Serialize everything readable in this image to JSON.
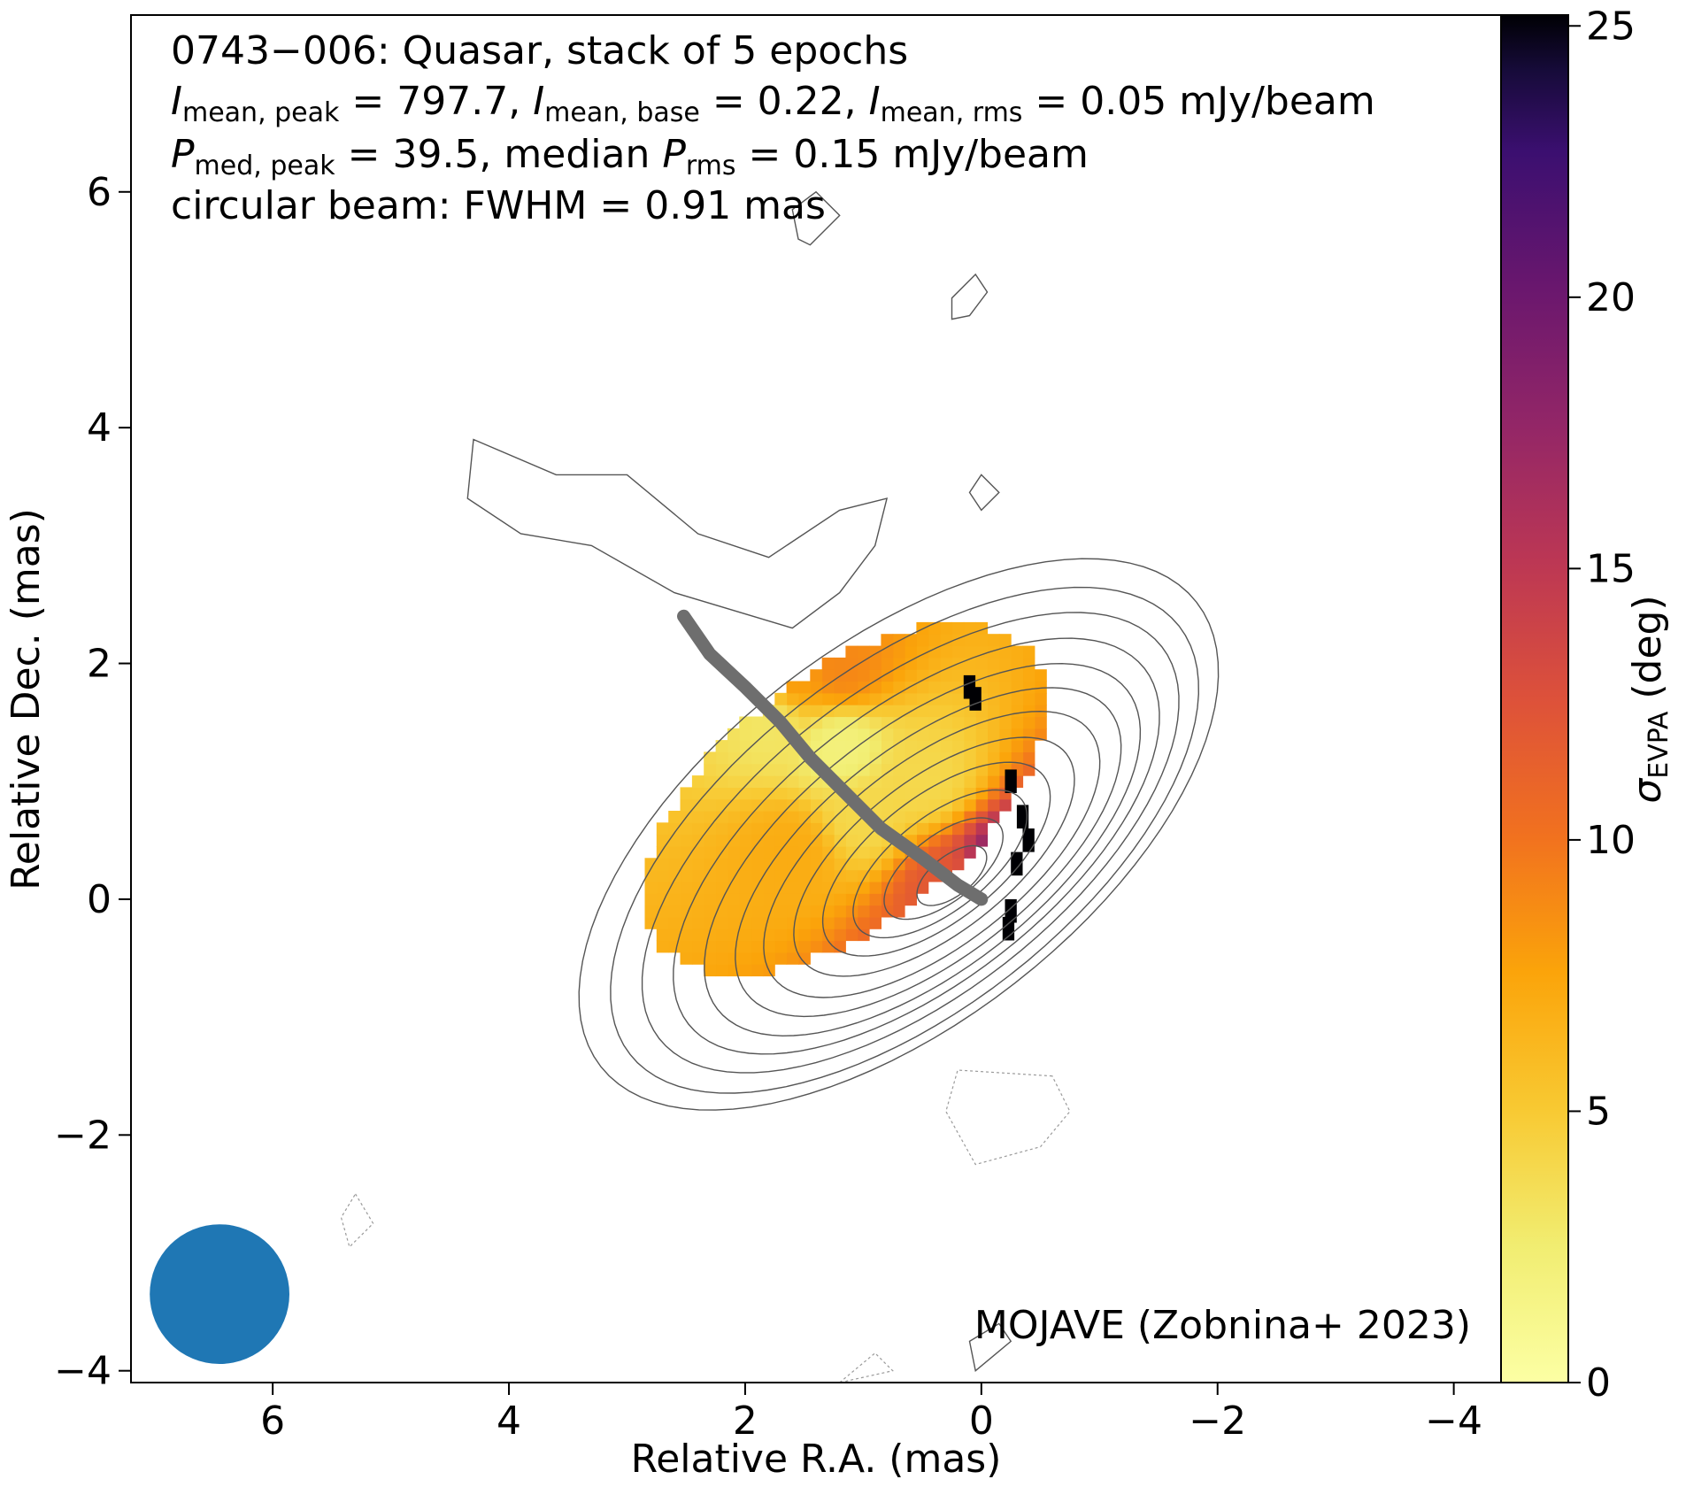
{
  "chart_data": {
    "type": "heatmap",
    "title_lines": [
      "0743−006: Quasar, stack of 5 epochs",
      "I_mean,peak = 797.7, I_mean,base = 0.22, I_mean,rms = 0.05 mJy/beam",
      "P_med,peak = 39.5, median P_rms = 0.15 mJy/beam",
      "circular beam: FWHM = 0.91 mas"
    ],
    "title": {
      "line1": "0743−006: Quasar, stack of 5 epochs",
      "line2": {
        "I": "I",
        "sub_peak": "mean, peak",
        "peak_val": " = 797.7, ",
        "sub_base": "mean, base",
        "base_val": " = 0.22, ",
        "sub_rms": "mean, rms",
        "rms_val": " = 0.05 mJy/beam"
      },
      "line3": {
        "P": "P",
        "sub_peak": "med, peak",
        "peak_val": " = 39.5, median ",
        "sub_rms": "rms",
        "rms_val": " = 0.15 mJy/beam"
      },
      "line4": "circular beam: FWHM = 0.91 mas"
    },
    "credit": "MOJAVE (Zobnina+ 2023)",
    "xlabel": "Relative R.A. (mas)",
    "ylabel": "Relative Dec. (mas)",
    "xlim": [
      7.2,
      -4.4
    ],
    "ylim": [
      -4.1,
      7.5
    ],
    "x_ticks": [
      6,
      4,
      2,
      0,
      -2,
      -4
    ],
    "x_tick_labels": [
      "6",
      "4",
      "2",
      "0",
      "−2",
      "−4"
    ],
    "y_ticks": [
      6,
      4,
      2,
      0,
      -2,
      -4
    ],
    "y_tick_labels": [
      "6",
      "4",
      "2",
      "0",
      "−2",
      "−4"
    ],
    "colorbar": {
      "label_symbol": "σ",
      "label_sub": "EVPA",
      "label_unit": " (deg)",
      "range": [
        0,
        25.2
      ],
      "ticks": [
        0,
        5,
        10,
        15,
        20,
        25
      ],
      "tick_labels": [
        "0",
        "5",
        "10",
        "15",
        "20",
        "25"
      ],
      "colormap": "inferno_r"
    },
    "beam": {
      "center": [
        6.45,
        -3.35
      ],
      "fwhm_mas": 0.91,
      "color": "#1f77b4"
    },
    "ridge_line": {
      "color": "#6e6e6e",
      "points": [
        [
          2.52,
          2.4
        ],
        [
          2.3,
          2.08
        ],
        [
          2.0,
          1.8
        ],
        [
          1.7,
          1.5
        ],
        [
          1.45,
          1.2
        ],
        [
          1.15,
          0.9
        ],
        [
          0.85,
          0.6
        ],
        [
          0.5,
          0.35
        ],
        [
          0.2,
          0.12
        ],
        [
          0.0,
          0.0
        ]
      ]
    },
    "contours": {
      "color": "#555555",
      "angle_deg": 38,
      "ellipses": [
        {
          "center": [
            0.7,
            0.55
          ],
          "semi_major": 3.2,
          "semi_minor": 1.6
        },
        {
          "center": [
            0.65,
            0.5
          ],
          "semi_major": 2.95,
          "semi_minor": 1.45
        },
        {
          "center": [
            0.6,
            0.48
          ],
          "semi_major": 2.7,
          "semi_minor": 1.3
        },
        {
          "center": [
            0.55,
            0.45
          ],
          "semi_major": 2.45,
          "semi_minor": 1.16
        },
        {
          "center": [
            0.5,
            0.42
          ],
          "semi_major": 2.2,
          "semi_minor": 1.03
        },
        {
          "center": [
            0.45,
            0.4
          ],
          "semi_major": 1.95,
          "semi_minor": 0.9
        },
        {
          "center": [
            0.42,
            0.38
          ],
          "semi_major": 1.7,
          "semi_minor": 0.78
        },
        {
          "center": [
            0.4,
            0.36
          ],
          "semi_major": 1.42,
          "semi_minor": 0.65
        },
        {
          "center": [
            0.38,
            0.34
          ],
          "semi_major": 1.15,
          "semi_minor": 0.53
        },
        {
          "center": [
            0.35,
            0.3
          ],
          "semi_major": 0.88,
          "semi_minor": 0.4
        },
        {
          "center": [
            0.32,
            0.26
          ],
          "semi_major": 0.6,
          "semi_minor": 0.28
        },
        {
          "center": [
            0.25,
            0.2
          ],
          "semi_major": 0.35,
          "semi_minor": 0.17
        }
      ],
      "outer_lobe": [
        [
          4.3,
          3.9
        ],
        [
          3.6,
          3.6
        ],
        [
          3.0,
          3.6
        ],
        [
          2.4,
          3.1
        ],
        [
          1.8,
          2.9
        ],
        [
          1.2,
          3.3
        ],
        [
          0.8,
          3.4
        ],
        [
          0.9,
          3.0
        ],
        [
          1.2,
          2.6
        ],
        [
          1.6,
          2.3
        ],
        [
          2.6,
          2.6
        ],
        [
          3.3,
          3.0
        ],
        [
          3.9,
          3.1
        ],
        [
          4.35,
          3.4
        ]
      ],
      "islands": [
        {
          "points": [
            [
              1.45,
              5.55
            ],
            [
              1.2,
              5.8
            ],
            [
              1.4,
              6.0
            ],
            [
              1.6,
              5.85
            ],
            [
              1.55,
              5.6
            ]
          ]
        },
        {
          "points": [
            [
              0.1,
              4.95
            ],
            [
              -0.05,
              5.15
            ],
            [
              0.05,
              5.3
            ],
            [
              0.25,
              5.1
            ],
            [
              0.25,
              4.92
            ]
          ]
        },
        {
          "points": [
            [
              0.0,
              3.3
            ],
            [
              -0.15,
              3.45
            ],
            [
              0.0,
              3.6
            ],
            [
              0.1,
              3.45
            ]
          ]
        },
        {
          "points": [
            [
              0.05,
              -4.0
            ],
            [
              -0.25,
              -3.75
            ],
            [
              -0.15,
              -3.6
            ],
            [
              0.1,
              -3.75
            ]
          ]
        }
      ],
      "negative": [
        {
          "points": [
            [
              -0.6,
              -1.5
            ],
            [
              0.2,
              -1.45
            ],
            [
              0.3,
              -1.8
            ],
            [
              0.05,
              -2.25
            ],
            [
              -0.5,
              -2.1
            ],
            [
              -0.75,
              -1.8
            ]
          ]
        },
        {
          "points": [
            [
              5.3,
              -2.5
            ],
            [
              5.15,
              -2.75
            ],
            [
              5.35,
              -2.95
            ],
            [
              5.42,
              -2.7
            ]
          ]
        },
        {
          "points": [
            [
              1.2,
              -4.1
            ],
            [
              0.9,
              -3.85
            ],
            [
              0.75,
              -4.0
            ]
          ]
        }
      ]
    },
    "polarization_map": {
      "description_values": "sigma_EVPA per pixel in degrees",
      "pixel_mas": 0.1,
      "region_center": [
        1.15,
        0.85
      ],
      "region_semi_major": 2.0,
      "region_semi_minor": 1.05,
      "region_angle_deg": 38,
      "black_pixels": [
        [
          -0.3,
          0.9
        ],
        [
          -0.4,
          0.6
        ],
        [
          -0.35,
          0.2
        ],
        [
          -0.3,
          -0.2
        ],
        [
          -0.45,
          0.4
        ],
        [
          -0.28,
          -0.35
        ],
        [
          0.05,
          1.7
        ],
        [
          0.0,
          1.6
        ]
      ],
      "samples": [
        {
          "point": [
            1.8,
            1.5
          ],
          "value": 3
        },
        {
          "point": [
            1.2,
            1.3
          ],
          "value": 2
        },
        {
          "point": [
            1.0,
            0.7
          ],
          "value": 4
        },
        {
          "point": [
            0.5,
            1.0
          ],
          "value": 4
        },
        {
          "point": [
            1.6,
            1.9
          ],
          "value": 8
        },
        {
          "point": [
            1.2,
            1.95
          ],
          "value": 9
        },
        {
          "point": [
            0.3,
            0.1
          ],
          "value": 12
        },
        {
          "point": [
            -0.2,
            0.2
          ],
          "value": 20
        },
        {
          "point": [
            0.6,
            -0.6
          ],
          "value": 11
        },
        {
          "point": [
            1.6,
            0.4
          ],
          "value": 7
        }
      ]
    }
  }
}
